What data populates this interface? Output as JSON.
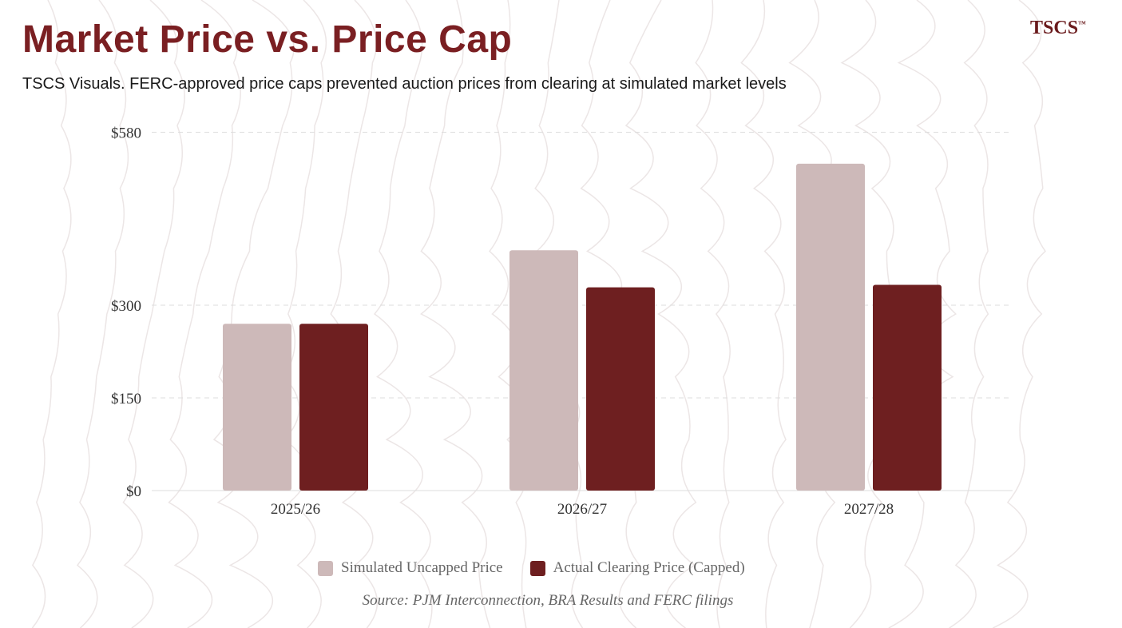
{
  "title": "Market Price vs. Price Cap",
  "subtitle": "TSCS Visuals. FERC-approved price caps prevented auction prices from clearing at simulated market levels",
  "logo": "TSCS",
  "logo_tm": "™",
  "source": "Source: PJM Interconnection, BRA Results and FERC filings",
  "colors": {
    "uncapped": "#cdb9b9",
    "capped": "#6e1f20",
    "title": "#7a1f22"
  },
  "chart_data": {
    "type": "bar",
    "categories": [
      "2025/26",
      "2026/27",
      "2027/28"
    ],
    "series": [
      {
        "name": "Simulated Uncapped Price",
        "values": [
          270,
          389,
          529
        ]
      },
      {
        "name": "Actual Clearing Price (Capped)",
        "values": [
          270,
          329,
          333
        ]
      }
    ],
    "yticks": [
      0,
      150,
      300,
      580
    ],
    "ytick_labels": [
      "$0",
      "$150",
      "$300",
      "$580"
    ],
    "ylim": [
      0,
      580
    ],
    "grid": true,
    "legend": "bottom",
    "xlabel": "",
    "ylabel": ""
  }
}
